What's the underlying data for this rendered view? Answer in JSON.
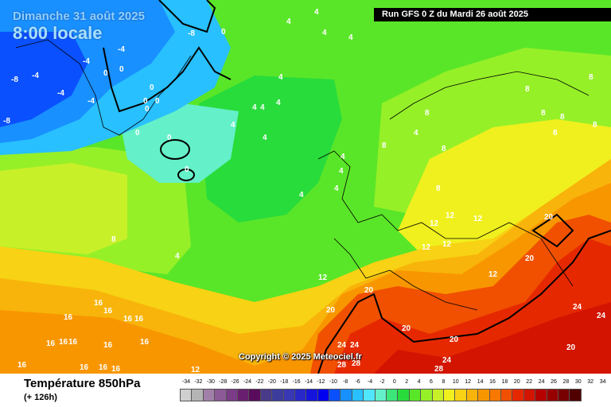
{
  "header": {
    "date": "Dimanche 31 août 2025",
    "time": "8:00 locale",
    "run": "Run GFS 0 Z du Mardi 26 août 2025"
  },
  "copyright": "Copyright © 2025 Meteociel.fr",
  "footer": {
    "title": "Température 850hPa",
    "lead": "(+ 126h)"
  },
  "legend": {
    "ticks": [
      "-34",
      "-32",
      "-30",
      "-28",
      "-26",
      "-24",
      "-22",
      "-20",
      "-18",
      "-16",
      "-14",
      "-12",
      "-10",
      "-8",
      "-6",
      "-4",
      "-2",
      "0",
      "2",
      "4",
      "6",
      "8",
      "10",
      "12",
      "14",
      "16",
      "18",
      "20",
      "22",
      "24",
      "26",
      "28",
      "30",
      "32",
      "34"
    ],
    "colors": [
      "#d0d0d0",
      "#b4b4b4",
      "#a080a8",
      "#8c5a96",
      "#7a3c86",
      "#6a2070",
      "#5a0c5c",
      "#4a3a8a",
      "#3c3c9c",
      "#3838b4",
      "#2828c8",
      "#1414dc",
      "#0000f0",
      "#0a50ff",
      "#1890ff",
      "#28c0ff",
      "#50e6ff",
      "#64f0c8",
      "#3ce678",
      "#28dc3c",
      "#5ae628",
      "#96f028",
      "#c8f028",
      "#f0f01e",
      "#f8d214",
      "#f8b40a",
      "#f89600",
      "#f87800",
      "#f05000",
      "#e62800",
      "#d21400",
      "#b40000",
      "#960000",
      "#780000",
      "#500000"
    ]
  },
  "map_labels": [
    {
      "t": "-8"
    },
    {
      "t": "-8"
    },
    {
      "t": "-8"
    },
    {
      "t": "-4"
    },
    {
      "t": "-4"
    },
    {
      "t": "-4"
    },
    {
      "t": "-4"
    },
    {
      "t": "-4"
    },
    {
      "t": "0"
    },
    {
      "t": "0"
    },
    {
      "t": "0"
    },
    {
      "t": "0"
    },
    {
      "t": "0"
    },
    {
      "t": "0"
    },
    {
      "t": "0"
    },
    {
      "t": "0"
    },
    {
      "t": "0"
    },
    {
      "t": "0"
    },
    {
      "t": "4"
    },
    {
      "t": "4"
    },
    {
      "t": "4"
    },
    {
      "t": "4"
    },
    {
      "t": "4"
    },
    {
      "t": "4"
    },
    {
      "t": "4"
    },
    {
      "t": "4"
    },
    {
      "t": "4"
    },
    {
      "t": "4"
    },
    {
      "t": "4"
    },
    {
      "t": "4"
    },
    {
      "t": "4"
    },
    {
      "t": "4"
    },
    {
      "t": "4"
    },
    {
      "t": "4"
    },
    {
      "t": "8"
    },
    {
      "t": "8"
    },
    {
      "t": "8"
    },
    {
      "t": "8"
    },
    {
      "t": "8"
    },
    {
      "t": "8"
    },
    {
      "t": "8"
    },
    {
      "t": "8"
    },
    {
      "t": "8"
    },
    {
      "t": "8"
    },
    {
      "t": "8"
    },
    {
      "t": "12"
    },
    {
      "t": "12"
    },
    {
      "t": "12"
    },
    {
      "t": "12"
    },
    {
      "t": "12"
    },
    {
      "t": "12"
    },
    {
      "t": "12"
    },
    {
      "t": "12"
    },
    {
      "t": "16"
    },
    {
      "t": "16"
    },
    {
      "t": "16"
    },
    {
      "t": "16"
    },
    {
      "t": "16"
    },
    {
      "t": "16"
    },
    {
      "t": "16"
    },
    {
      "t": "16"
    },
    {
      "t": "16"
    },
    {
      "t": "16"
    },
    {
      "t": "16"
    },
    {
      "t": "16"
    },
    {
      "t": "16"
    },
    {
      "t": "16"
    },
    {
      "t": "20"
    },
    {
      "t": "20"
    },
    {
      "t": "20"
    },
    {
      "t": "20"
    },
    {
      "t": "20"
    },
    {
      "t": "20"
    },
    {
      "t": "20"
    },
    {
      "t": "24"
    },
    {
      "t": "24"
    },
    {
      "t": "24"
    },
    {
      "t": "24"
    },
    {
      "t": "24"
    },
    {
      "t": "28"
    },
    {
      "t": "28"
    },
    {
      "t": "28"
    }
  ]
}
